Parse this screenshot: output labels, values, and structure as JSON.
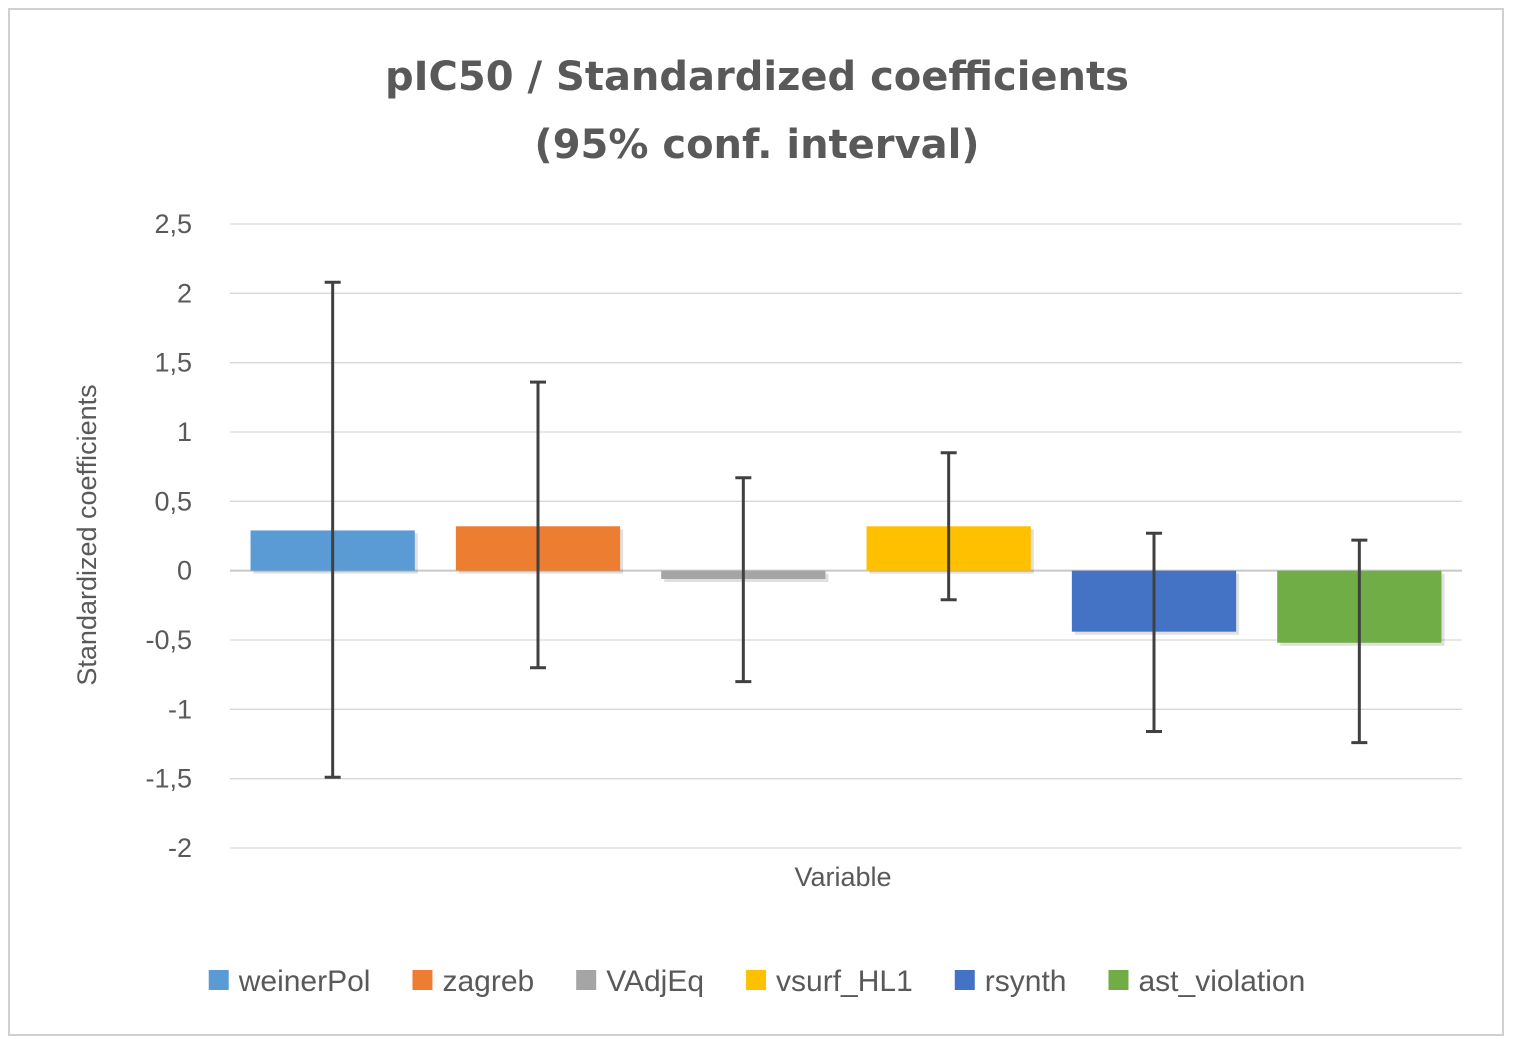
{
  "chart_data": {
    "type": "bar",
    "title_lines": [
      "pIC50 / Standardized coefficients",
      "(95% conf. interval)"
    ],
    "xlabel": "Variable",
    "ylabel": "Standardized coefficients",
    "ylim": [
      -2,
      2.5
    ],
    "yticks": [
      2.5,
      2,
      1.5,
      1,
      0.5,
      0,
      -0.5,
      -1,
      -1.5,
      -2
    ],
    "ytick_labels": [
      "2,5",
      "2",
      "1,5",
      "1",
      "0,5",
      "0",
      "-0,5",
      "-1",
      "-1,5",
      "-2"
    ],
    "grid": true,
    "legend_position": "bottom",
    "series": [
      {
        "name": "weinerPol",
        "value": 0.29,
        "ci_low": -1.49,
        "ci_high": 2.08,
        "color": "#5B9BD5"
      },
      {
        "name": "zagreb",
        "value": 0.32,
        "ci_low": -0.7,
        "ci_high": 1.36,
        "color": "#ED7D31"
      },
      {
        "name": "VAdjEq",
        "value": -0.06,
        "ci_low": -0.8,
        "ci_high": 0.67,
        "color": "#A5A5A5"
      },
      {
        "name": "vsurf_HL1",
        "value": 0.32,
        "ci_low": -0.21,
        "ci_high": 0.85,
        "color": "#FFC000"
      },
      {
        "name": "rsynth",
        "value": -0.44,
        "ci_low": -1.16,
        "ci_high": 0.27,
        "color": "#4472C4"
      },
      {
        "name": "ast_violation",
        "value": -0.52,
        "ci_low": -1.24,
        "ci_high": 0.22,
        "color": "#70AD47"
      }
    ]
  }
}
